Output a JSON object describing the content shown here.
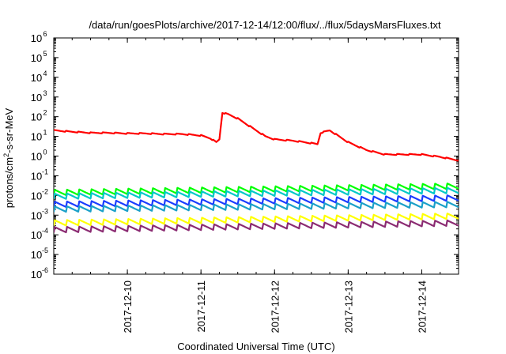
{
  "chart_data": {
    "type": "line",
    "title": "/data/run/goesPlots/archive/2017-12-14/12:00/flux/../flux/5daysMarsFluxes.txt",
    "xlabel": "Coordinated Universal Time (UTC)",
    "ylabel": {
      "pre": "protons/cm",
      "sup": "2",
      "post": "-s-sr-MeV"
    },
    "yscale": "log",
    "ylim_exp": [
      -6,
      6
    ],
    "ytick_exps": [
      -6,
      -5,
      -4,
      -3,
      -2,
      -1,
      0,
      1,
      2,
      3,
      4,
      5,
      6
    ],
    "xlim": [
      "2017-12-09T00:00",
      "2017-12-14T12:00"
    ],
    "xticks": [
      "2017-12-10",
      "2017-12-11",
      "2017-12-12",
      "2017-12-13",
      "2017-12-14"
    ],
    "grid": false,
    "legend": "none",
    "series": [
      {
        "color": "#ff0000",
        "points": [
          [
            "2017-12-09T00:00",
            20
          ],
          [
            "2017-12-09T06:00",
            17
          ],
          [
            "2017-12-09T12:00",
            15
          ],
          [
            "2017-12-09T18:00",
            15
          ],
          [
            "2017-12-10T00:00",
            14
          ],
          [
            "2017-12-10T06:00",
            14
          ],
          [
            "2017-12-10T12:00",
            13
          ],
          [
            "2017-12-10T18:00",
            13
          ],
          [
            "2017-12-11T00:00",
            11
          ],
          [
            "2017-12-11T03:00",
            8
          ],
          [
            "2017-12-11T05:00",
            5
          ],
          [
            "2017-12-11T06:00",
            7
          ],
          [
            "2017-12-11T07:00",
            160
          ],
          [
            "2017-12-11T09:00",
            130
          ],
          [
            "2017-12-11T12:00",
            80
          ],
          [
            "2017-12-11T15:00",
            40
          ],
          [
            "2017-12-11T18:00",
            20
          ],
          [
            "2017-12-11T21:00",
            10
          ],
          [
            "2017-12-12T00:00",
            7
          ],
          [
            "2017-12-12T06:00",
            6
          ],
          [
            "2017-12-12T12:00",
            4.5
          ],
          [
            "2017-12-12T14:00",
            4
          ],
          [
            "2017-12-12T15:00",
            15
          ],
          [
            "2017-12-12T18:00",
            20
          ],
          [
            "2017-12-12T21:00",
            10
          ],
          [
            "2017-12-13T00:00",
            5
          ],
          [
            "2017-12-13T06:00",
            2
          ],
          [
            "2017-12-13T12:00",
            1.2
          ],
          [
            "2017-12-13T18:00",
            1.2
          ],
          [
            "2017-12-14T00:00",
            1.2
          ],
          [
            "2017-12-14T06:00",
            0.9
          ],
          [
            "2017-12-14T12:00",
            0.6
          ]
        ]
      },
      {
        "color": "#00ff00",
        "start": [
          "2017-12-09T00:00",
          0.014
        ],
        "end": [
          "2017-12-14T12:00",
          0.03
        ],
        "jump": [
          "2017-12-11T00:00",
          1.3
        ]
      },
      {
        "color": "#00c8c8",
        "start": [
          "2017-12-09T00:00",
          0.009
        ],
        "end": [
          "2017-12-14T12:00",
          0.018
        ],
        "jump": [
          "2017-12-11T00:00",
          1.3
        ]
      },
      {
        "color": "#1a3cff",
        "start": [
          "2017-12-09T00:00",
          0.0035
        ],
        "end": [
          "2017-12-14T12:00",
          0.0075
        ],
        "jump": [
          "2017-12-11T00:00",
          1.3
        ]
      },
      {
        "color": "#1aa0c8",
        "start": [
          "2017-12-09T00:00",
          0.002
        ],
        "end": [
          "2017-12-14T12:00",
          0.0035
        ],
        "jump": [
          "2017-12-11T00:00",
          1.3
        ]
      },
      {
        "color": "#ffff00",
        "start": [
          "2017-12-09T00:00",
          0.0004
        ],
        "end": [
          "2017-12-14T12:00",
          0.0009
        ],
        "jump": [
          "2017-12-11T00:00",
          1.2
        ]
      },
      {
        "color": "#8b2b72",
        "start": [
          "2017-12-09T00:00",
          0.00018
        ],
        "end": [
          "2017-12-14T12:00",
          0.0004
        ],
        "jump": [
          "2017-12-11T00:00",
          1.2
        ]
      }
    ]
  }
}
